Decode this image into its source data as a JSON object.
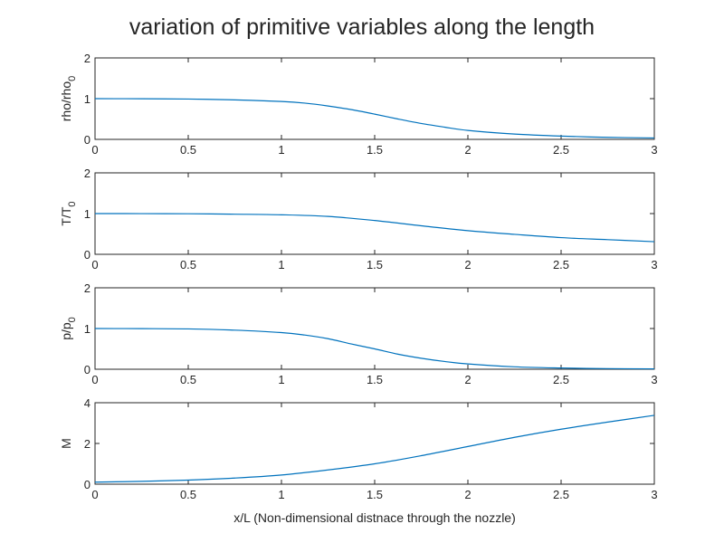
{
  "figure": {
    "title": "variation of primitive variables along the length"
  },
  "chart_data": [
    {
      "type": "line",
      "ylabel": "rho/rho",
      "ylabel_subscript": "0",
      "xlim": [
        0,
        3
      ],
      "ylim": [
        0,
        2
      ],
      "xticks": [
        "0",
        "0.5",
        "1",
        "1.5",
        "2",
        "2.5",
        "3"
      ],
      "yticks": [
        "0",
        "1",
        "2"
      ],
      "color": "#0072BD",
      "x": [
        0,
        0.25,
        0.5,
        0.75,
        1.0,
        1.125,
        1.25,
        1.375,
        1.5,
        1.625,
        1.75,
        1.875,
        2.0,
        2.25,
        2.5,
        2.75,
        3.0
      ],
      "y": [
        1.0,
        0.997,
        0.99,
        0.97,
        0.93,
        0.89,
        0.82,
        0.73,
        0.62,
        0.5,
        0.39,
        0.3,
        0.22,
        0.13,
        0.08,
        0.05,
        0.035
      ]
    },
    {
      "type": "line",
      "ylabel": "T/T",
      "ylabel_subscript": "0",
      "xlim": [
        0,
        3
      ],
      "ylim": [
        0,
        2
      ],
      "xticks": [
        "0",
        "0.5",
        "1",
        "1.5",
        "2",
        "2.5",
        "3"
      ],
      "yticks": [
        "0",
        "1",
        "2"
      ],
      "color": "#0072BD",
      "x": [
        0,
        0.25,
        0.5,
        0.75,
        1.0,
        1.25,
        1.5,
        1.75,
        2.0,
        2.25,
        2.5,
        2.75,
        3.0
      ],
      "y": [
        1.0,
        0.999,
        0.996,
        0.985,
        0.97,
        0.93,
        0.83,
        0.7,
        0.58,
        0.49,
        0.41,
        0.36,
        0.31
      ]
    },
    {
      "type": "line",
      "ylabel": "p/p",
      "ylabel_subscript": "0",
      "xlim": [
        0,
        3
      ],
      "ylim": [
        0,
        2
      ],
      "xticks": [
        "0",
        "0.5",
        "1",
        "1.5",
        "2",
        "2.5",
        "3"
      ],
      "yticks": [
        "0",
        "1",
        "2"
      ],
      "color": "#0072BD",
      "x": [
        0,
        0.25,
        0.5,
        0.75,
        1.0,
        1.125,
        1.25,
        1.375,
        1.5,
        1.625,
        1.75,
        1.875,
        2.0,
        2.25,
        2.5,
        2.75,
        3.0
      ],
      "y": [
        1.0,
        0.997,
        0.99,
        0.96,
        0.9,
        0.84,
        0.75,
        0.62,
        0.5,
        0.37,
        0.27,
        0.19,
        0.13,
        0.06,
        0.03,
        0.015,
        0.01
      ]
    },
    {
      "type": "line",
      "ylabel": "M",
      "ylabel_subscript": "",
      "xlabel": "x/L (Non-dimensional distnace through the nozzle)",
      "xlim": [
        0,
        3
      ],
      "ylim": [
        0,
        4
      ],
      "xticks": [
        "0",
        "0.5",
        "1",
        "1.5",
        "2",
        "2.5",
        "3"
      ],
      "yticks": [
        "0",
        "2",
        "4"
      ],
      "color": "#0072BD",
      "x": [
        0,
        0.25,
        0.5,
        0.75,
        1.0,
        1.25,
        1.5,
        1.75,
        2.0,
        2.25,
        2.5,
        2.75,
        3.0
      ],
      "y": [
        0.1,
        0.14,
        0.2,
        0.3,
        0.45,
        0.7,
        1.0,
        1.4,
        1.85,
        2.3,
        2.7,
        3.05,
        3.38
      ]
    }
  ]
}
